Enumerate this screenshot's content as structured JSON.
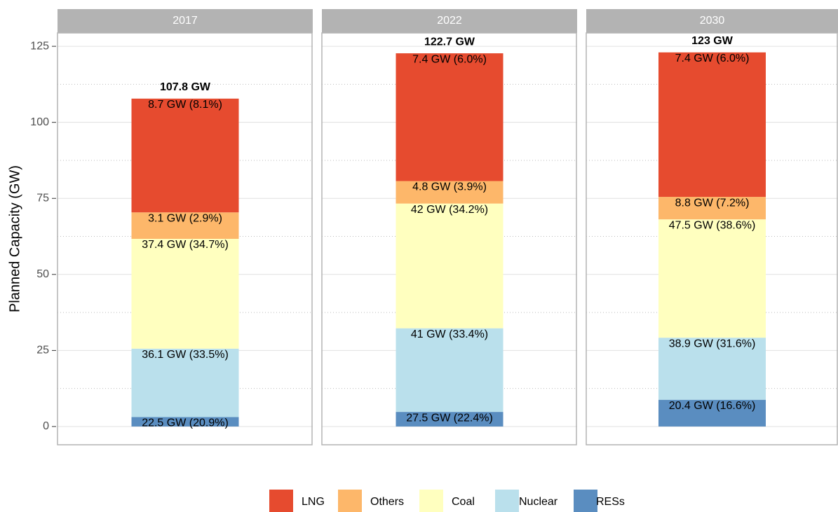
{
  "chart_data": {
    "type": "bar",
    "stacked": true,
    "ylabel": "Planned Capacity (GW)",
    "categories": [
      "2017",
      "2022",
      "2030"
    ],
    "ylim": [
      -6.0,
      129.4
    ],
    "yticks": [
      0,
      25,
      50,
      75,
      100,
      125
    ],
    "minor_yticks": [
      12.5,
      37.5,
      62.5,
      87.5,
      112.5
    ],
    "grid": true,
    "legend": "bottom",
    "series": [
      {
        "name": "LNG",
        "color": "#e64b2f",
        "values": [
          37.4,
          42,
          47.5
        ]
      },
      {
        "name": "Others",
        "color": "#fdb76a",
        "values": [
          8.7,
          7.4,
          7.4
        ]
      },
      {
        "name": "Coal",
        "color": "#ffffbf",
        "values": [
          36.1,
          41,
          38.9
        ]
      },
      {
        "name": "Nuclear",
        "color": "#bae0ec",
        "values": [
          22.5,
          27.5,
          20.4
        ]
      },
      {
        "name": "RESs",
        "color": "#5a8dc0",
        "values": [
          3.1,
          4.8,
          8.8
        ]
      }
    ],
    "totals": [
      107.8,
      122.7,
      123
    ],
    "total_labels": [
      "107.8 GW",
      "122.7 GW",
      "123 GW"
    ],
    "annotations": [
      [
        "22.5 GW (20.9%)",
        "36.1 GW (33.5%)",
        "37.4 GW (34.7%)",
        "3.1 GW (2.9%)",
        "8.7 GW (8.1%)"
      ],
      [
        "27.5 GW (22.4%)",
        "41 GW (33.4%)",
        "42 GW (34.2%)",
        "4.8 GW (3.9%)",
        "7.4 GW (6.0%)"
      ],
      [
        "20.4 GW (16.6%)",
        "38.9 GW (31.6%)",
        "47.5 GW (38.6%)",
        "8.8 GW (7.2%)",
        "7.4 GW (6.0%)"
      ]
    ]
  }
}
